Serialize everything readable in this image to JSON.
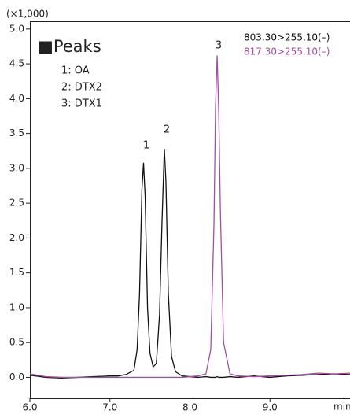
{
  "chart_data": {
    "type": "line",
    "y_unit_label": "(×1,000)",
    "x_label": "min",
    "x": [
      6.0,
      6.2,
      6.4,
      6.6,
      6.8,
      7.0,
      7.1,
      7.2,
      7.3,
      7.34,
      7.37,
      7.4,
      7.42,
      7.44,
      7.47,
      7.5,
      7.54,
      7.58,
      7.62,
      7.65,
      7.68,
      7.7,
      7.73,
      7.77,
      7.82,
      7.9,
      8.0,
      8.1,
      8.2,
      8.26,
      8.3,
      8.32,
      8.34,
      8.36,
      8.38,
      8.42,
      8.5,
      8.6,
      8.8,
      9.0,
      9.2,
      9.4,
      9.6,
      9.8,
      10.0
    ],
    "series": [
      {
        "name": "803.30>255.10(–)",
        "color": "#111111",
        "values": [
          0.03,
          0.0,
          -0.01,
          0.0,
          0.01,
          0.02,
          0.02,
          0.04,
          0.1,
          0.4,
          1.2,
          2.7,
          3.08,
          2.6,
          1.0,
          0.35,
          0.15,
          0.2,
          0.9,
          2.2,
          3.28,
          2.8,
          1.2,
          0.3,
          0.08,
          0.02,
          0.01,
          0.0,
          0.01,
          0.0,
          0.0,
          0.0,
          0.01,
          0.0,
          0.0,
          0.0,
          0.01,
          0.0,
          0.02,
          0.0,
          0.02,
          0.03,
          0.04,
          0.05,
          0.04
        ]
      },
      {
        "name": "817.30>255.10(–)",
        "color": "#a0519e",
        "values": [
          0.05,
          0.01,
          0.0,
          0.0,
          0.0,
          0.0,
          0.0,
          0.0,
          0.0,
          0.0,
          0.0,
          0.0,
          0.0,
          0.0,
          0.0,
          0.0,
          0.0,
          0.0,
          0.0,
          0.0,
          0.0,
          0.0,
          0.0,
          0.0,
          0.0,
          0.0,
          0.01,
          0.02,
          0.05,
          0.4,
          2.2,
          3.9,
          4.62,
          3.8,
          2.4,
          0.5,
          0.05,
          0.02,
          0.01,
          0.02,
          0.03,
          0.04,
          0.06,
          0.05,
          0.06
        ]
      }
    ],
    "peak_labels": [
      "1",
      "2",
      "3"
    ],
    "peaks_legend": {
      "title": "■Peaks",
      "items": [
        "1: OA",
        "2: DTX2",
        "3: DTX1"
      ]
    },
    "xlim": [
      6.0,
      10.0
    ],
    "xticks": [
      {
        "value": 6.0,
        "label": "6.0"
      },
      {
        "value": 7.0,
        "label": "7.0"
      },
      {
        "value": 8.0,
        "label": "8.0"
      },
      {
        "value": 9.0,
        "label": "9.0"
      }
    ],
    "ylim": [
      -0.3,
      5.1
    ],
    "yticks": [
      {
        "value": 0.0,
        "label": "0.0"
      },
      {
        "value": 0.5,
        "label": "0.5"
      },
      {
        "value": 1.0,
        "label": "1.0"
      },
      {
        "value": 1.5,
        "label": "1.5"
      },
      {
        "value": 2.0,
        "label": "2.0"
      },
      {
        "value": 2.5,
        "label": "2.5"
      },
      {
        "value": 3.0,
        "label": "3.0"
      },
      {
        "value": 3.5,
        "label": "3.5"
      },
      {
        "value": 4.0,
        "label": "4.0"
      },
      {
        "value": 4.5,
        "label": "4.5"
      },
      {
        "value": 5.0,
        "label": "5.0"
      }
    ],
    "grid": false,
    "legend_position": "upper right"
  }
}
